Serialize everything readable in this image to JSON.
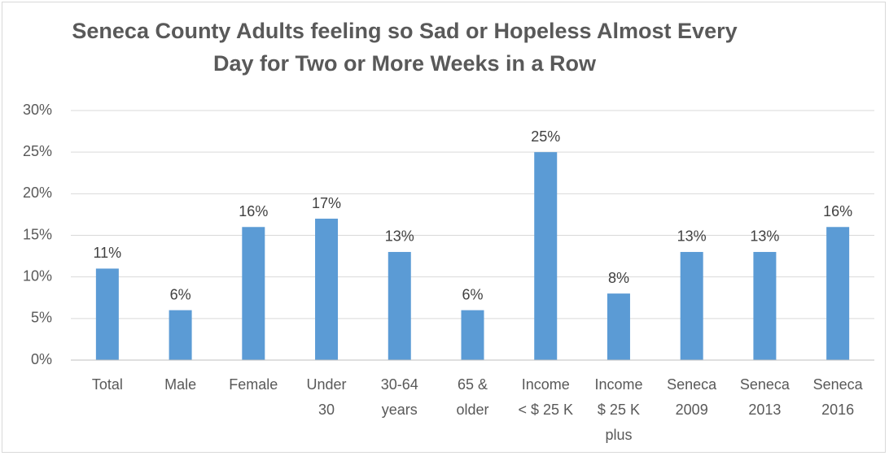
{
  "chart_data": {
    "type": "bar",
    "title_lines": [
      "Seneca County Adults feeling so Sad or Hopeless Almost Every",
      "Day for Two or More Weeks in a Row"
    ],
    "categories": [
      [
        "Total"
      ],
      [
        "Male"
      ],
      [
        "Female"
      ],
      [
        "Under",
        "30"
      ],
      [
        "30-64",
        "years"
      ],
      [
        "65 &",
        "older"
      ],
      [
        "Income",
        "< $ 25 K"
      ],
      [
        "Income",
        "$ 25 K",
        "plus"
      ],
      [
        "Seneca",
        "2009"
      ],
      [
        "Seneca",
        "2013"
      ],
      [
        "Seneca",
        "2016"
      ]
    ],
    "values": [
      11,
      6,
      16,
      17,
      13,
      6,
      25,
      8,
      13,
      13,
      16
    ],
    "data_labels": [
      "11%",
      "6%",
      "16%",
      "17%",
      "13%",
      "6%",
      "25%",
      "8%",
      "13%",
      "13%",
      "16%"
    ],
    "yticks": [
      0,
      5,
      10,
      15,
      20,
      25,
      30
    ],
    "ytick_labels": [
      "0%",
      "5%",
      "10%",
      "15%",
      "20%",
      "25%",
      "30%"
    ],
    "ylim": [
      0,
      30
    ],
    "grid": true,
    "legend": false,
    "bar_color": "#5b9bd5"
  }
}
